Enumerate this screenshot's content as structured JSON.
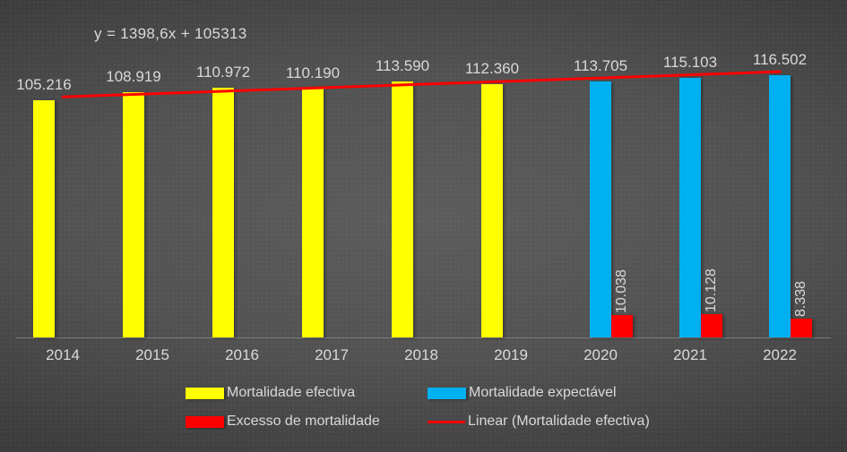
{
  "equation_label": "y = 1398,6x + 105313",
  "colors": {
    "effective": "#FFFF00",
    "expected": "#00B0F0",
    "excess": "#FF0000",
    "trendline": "#FF0000",
    "text": "#d9d9d9",
    "axis": "#8a8a8a",
    "background_center": "#5c5c5c",
    "background_edge": "#2a2a2a"
  },
  "chart_data": {
    "type": "bar",
    "categories": [
      "2014",
      "2015",
      "2016",
      "2017",
      "2018",
      "2019",
      "2020",
      "2021",
      "2022"
    ],
    "series": [
      {
        "name": "Mortalidade efectiva",
        "color": "#FFFF00",
        "values": [
          105216,
          108919,
          110972,
          110190,
          113590,
          112360,
          null,
          null,
          null
        ],
        "labels": [
          "105.216",
          "108.919",
          "110.972",
          "110.190",
          "113.590",
          "112.360",
          null,
          null,
          null
        ],
        "labels_rotated": false
      },
      {
        "name": "Mortalidade expectável",
        "color": "#00B0F0",
        "values": [
          null,
          null,
          null,
          null,
          null,
          null,
          113705,
          115103,
          116502
        ],
        "labels": [
          null,
          null,
          null,
          null,
          null,
          null,
          "113.705",
          "115.103",
          "116.502"
        ],
        "labels_rotated": false
      },
      {
        "name": "Excesso de mortalidade",
        "color": "#FF0000",
        "values": [
          null,
          null,
          null,
          null,
          null,
          null,
          10038,
          10128,
          8338
        ],
        "labels": [
          null,
          null,
          null,
          null,
          null,
          null,
          "10.038",
          "10.128",
          "8.338"
        ],
        "labels_rotated": true
      }
    ],
    "trendline": {
      "name": "Linear (Mortalidade efectiva)",
      "color": "#FF0000",
      "equation": "y = 1398,6x + 105313",
      "slope": 1398.6,
      "intercept": 105313
    },
    "ylim": [
      0,
      150000
    ],
    "gridlines": false,
    "legend_position": "bottom",
    "title": "",
    "xlabel": "",
    "ylabel": ""
  },
  "legend": {
    "items": [
      {
        "label": "Mortalidade efectiva",
        "color": "#FFFF00",
        "swatch": "box"
      },
      {
        "label": "Mortalidade expectável",
        "color": "#00B0F0",
        "swatch": "box"
      },
      {
        "label": "Excesso de mortalidade",
        "color": "#FF0000",
        "swatch": "box"
      },
      {
        "label": "Linear (Mortalidade efectiva)",
        "color": "#FF0000",
        "swatch": "line"
      }
    ]
  }
}
